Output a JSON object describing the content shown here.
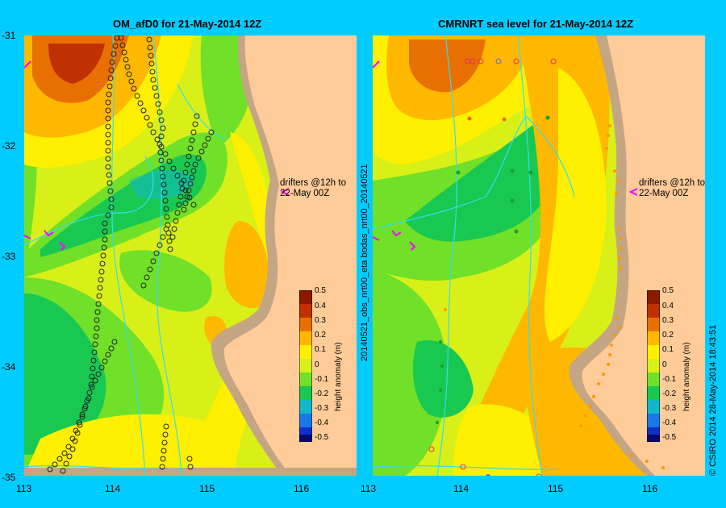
{
  "left_panel": {
    "title": "OM_afD0 for 21-May-2014 12Z",
    "drifter_label_1": "drifters @12h to",
    "drifter_label_2": "22-May 00Z"
  },
  "right_panel": {
    "title": "CMRNRT sea level  for 21-May-2014 12Z",
    "side_text": "20140521_obs_nrt00_eta    bodas_nrt00_20140521",
    "drifter_label_1": "drifters @12h to",
    "drifter_label_2": "22-May 00Z"
  },
  "axes": {
    "y_ticks": [
      "-31",
      "-32",
      "-33",
      "-34",
      "-35"
    ],
    "x_ticks": [
      "113",
      "114",
      "115",
      "116"
    ]
  },
  "colorbar": {
    "ticks": [
      "0.5",
      "0.4",
      "0.3",
      "0.2",
      "0.1",
      "0",
      "-0.1",
      "-0.2",
      "-0.3",
      "-0.4",
      "-0.5"
    ],
    "label": "height anomaly (m)",
    "colors": [
      "#08086e",
      "#1030c8",
      "#1878e8",
      "#10b8c8",
      "#18c850",
      "#70e028",
      "#d8f018",
      "#fff000",
      "#ffb800",
      "#e87000",
      "#c03000",
      "#8c1800"
    ]
  },
  "credit": "© CSIRO 2014   28-May-2014 18:43:51",
  "colors": {
    "land": "#ffcc99",
    "coast_strip": "#c4a584",
    "frame_bg": "#00ccff",
    "drifter_marker": "#ff00ff",
    "current_line": "#33ddee"
  },
  "chart_data": {
    "type": "heatmap",
    "variable": "height anomaly (m)",
    "lon_range": [
      113,
      116.6
    ],
    "lat_range": [
      -35,
      -31
    ],
    "color_range": [
      -0.5,
      0.5
    ]
  }
}
